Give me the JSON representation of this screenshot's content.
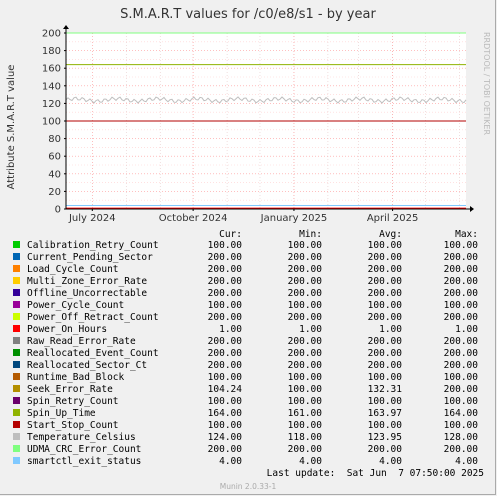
{
  "chart_data": {
    "type": "line",
    "title": "S.M.A.R.T values for /c0/e8/s1 - by year",
    "ylabel": "Attribute S.M.A.R.T value",
    "xlabel": "",
    "ylim": [
      0,
      200
    ],
    "y_ticks": [
      "0",
      "20",
      "40",
      "60",
      "80",
      "100",
      "120",
      "140",
      "160",
      "180",
      "200"
    ],
    "x_ticks": [
      {
        "label": "July 2024",
        "date": "2024-07-01"
      },
      {
        "label": "October 2024",
        "date": "2024-10-01"
      },
      {
        "label": "January 2025",
        "date": "2025-01-01"
      },
      {
        "label": "April 2025",
        "date": "2025-04-01"
      }
    ],
    "x_range": [
      "2024-06-07",
      "2025-06-07"
    ],
    "grid": true,
    "side_label": "RRDTOOL / TOBI OETIKER",
    "columns": [
      "Cur:",
      "Min:",
      "Avg:",
      "Max:"
    ],
    "series": [
      {
        "name": "Calibration_Retry_Count",
        "color": "#00cc00",
        "cur": "100.00",
        "min": "100.00",
        "avg": "100.00",
        "max": "100.00",
        "level": 100
      },
      {
        "name": "Current_Pending_Sector",
        "color": "#0066b3",
        "cur": "200.00",
        "min": "200.00",
        "avg": "200.00",
        "max": "200.00",
        "level": 200
      },
      {
        "name": "Load_Cycle_Count",
        "color": "#ff8000",
        "cur": "200.00",
        "min": "200.00",
        "avg": "200.00",
        "max": "200.00",
        "level": 200
      },
      {
        "name": "Multi_Zone_Error_Rate",
        "color": "#ffcc00",
        "cur": "200.00",
        "min": "200.00",
        "avg": "200.00",
        "max": "200.00",
        "level": 200
      },
      {
        "name": "Offline_Uncorrectable",
        "color": "#330099",
        "cur": "200.00",
        "min": "200.00",
        "avg": "200.00",
        "max": "200.00",
        "level": 200
      },
      {
        "name": "Power_Cycle_Count",
        "color": "#990099",
        "cur": "100.00",
        "min": "100.00",
        "avg": "100.00",
        "max": "100.00",
        "level": 100
      },
      {
        "name": "Power_Off_Retract_Count",
        "color": "#ccff00",
        "cur": "200.00",
        "min": "200.00",
        "avg": "200.00",
        "max": "200.00",
        "level": 200
      },
      {
        "name": "Power_On_Hours",
        "color": "#ff0000",
        "cur": "1.00",
        "min": "1.00",
        "avg": "1.00",
        "max": "1.00",
        "level": 1
      },
      {
        "name": "Raw_Read_Error_Rate",
        "color": "#808080",
        "cur": "200.00",
        "min": "200.00",
        "avg": "200.00",
        "max": "200.00",
        "level": 200
      },
      {
        "name": "Reallocated_Event_Count",
        "color": "#008f00",
        "cur": "200.00",
        "min": "200.00",
        "avg": "200.00",
        "max": "200.00",
        "level": 200
      },
      {
        "name": "Reallocated_Sector_Ct",
        "color": "#00487d",
        "cur": "200.00",
        "min": "200.00",
        "avg": "200.00",
        "max": "200.00",
        "level": 200
      },
      {
        "name": "Runtime_Bad_Block",
        "color": "#b35a00",
        "cur": "100.00",
        "min": "100.00",
        "avg": "100.00",
        "max": "100.00",
        "level": 100
      },
      {
        "name": "Seek_Error_Rate",
        "color": "#b38f00",
        "cur": "104.24",
        "min": "100.00",
        "avg": "132.31",
        "max": "200.00",
        "level": 132,
        "oscillating": true
      },
      {
        "name": "Spin_Retry_Count",
        "color": "#6b006b",
        "cur": "100.00",
        "min": "100.00",
        "avg": "100.00",
        "max": "100.00",
        "level": 100
      },
      {
        "name": "Spin_Up_Time",
        "color": "#8fb300",
        "cur": "164.00",
        "min": "161.00",
        "avg": "163.97",
        "max": "164.00",
        "level": 164
      },
      {
        "name": "Start_Stop_Count",
        "color": "#b30000",
        "cur": "100.00",
        "min": "100.00",
        "avg": "100.00",
        "max": "100.00",
        "level": 100
      },
      {
        "name": "Temperature_Celsius",
        "color": "#bebebe",
        "cur": "124.00",
        "min": "118.00",
        "avg": "123.95",
        "max": "128.00",
        "level": 124
      },
      {
        "name": "UDMA_CRC_Error_Count",
        "color": "#80ff80",
        "cur": "200.00",
        "min": "200.00",
        "avg": "200.00",
        "max": "200.00",
        "level": 200
      },
      {
        "name": "smartctl_exit_status",
        "color": "#80c9ff",
        "cur": "4.00",
        "min": "4.00",
        "avg": "4.00",
        "max": "4.00",
        "level": 4
      }
    ],
    "last_update": "Last update:  Sat Jun  7 07:50:00 2025",
    "footer": "Munin 2.0.33-1"
  }
}
